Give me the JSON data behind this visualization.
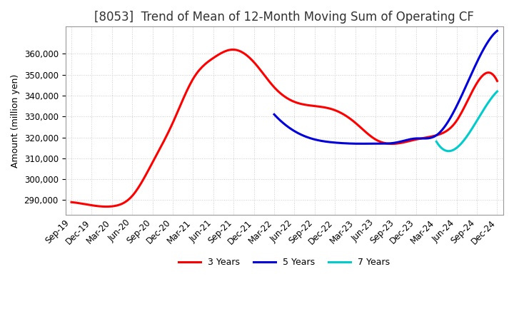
{
  "title": "[8053]  Trend of Mean of 12-Month Moving Sum of Operating CF",
  "ylabel": "Amount (million yen)",
  "ylim": [
    283000,
    373000
  ],
  "yticks": [
    290000,
    300000,
    310000,
    320000,
    330000,
    340000,
    350000,
    360000
  ],
  "background_color": "#ffffff",
  "grid_color": "#cccccc",
  "x_labels": [
    "Sep-19",
    "Dec-19",
    "Mar-20",
    "Jun-20",
    "Sep-20",
    "Dec-20",
    "Mar-21",
    "Jun-21",
    "Sep-21",
    "Dec-21",
    "Mar-22",
    "Jun-22",
    "Sep-22",
    "Dec-22",
    "Mar-23",
    "Jun-23",
    "Sep-23",
    "Dec-23",
    "Mar-24",
    "Jun-24",
    "Sep-24",
    "Dec-24"
  ],
  "series": {
    "3 Years": {
      "color": "#ff0000",
      "data": [
        289000,
        287500,
        287000,
        292000,
        308000,
        327000,
        348000,
        358000,
        362000,
        356000,
        344000,
        337000,
        335000,
        333000,
        327000,
        319000,
        317000,
        319000,
        321000,
        328000,
        346000,
        347000
      ]
    },
    "5 Years": {
      "color": "#0000dd",
      "data": [
        null,
        null,
        null,
        null,
        null,
        null,
        null,
        null,
        null,
        null,
        331000,
        323000,
        319000,
        317500,
        317000,
        317000,
        317500,
        319500,
        321000,
        335000,
        356000,
        371000
      ]
    },
    "7 Years": {
      "color": "#00cccc",
      "data": [
        null,
        null,
        null,
        null,
        null,
        null,
        null,
        null,
        null,
        null,
        null,
        null,
        null,
        null,
        null,
        null,
        null,
        null,
        318000,
        315000,
        328000,
        342000
      ]
    },
    "10 Years": {
      "color": "#008800",
      "data": [
        null,
        null,
        null,
        null,
        null,
        null,
        null,
        null,
        null,
        null,
        null,
        null,
        null,
        null,
        null,
        null,
        null,
        null,
        null,
        null,
        null,
        null
      ]
    }
  },
  "legend_loc": "lower center",
  "title_fontsize": 12,
  "tick_fontsize": 8.5,
  "label_fontsize": 9
}
